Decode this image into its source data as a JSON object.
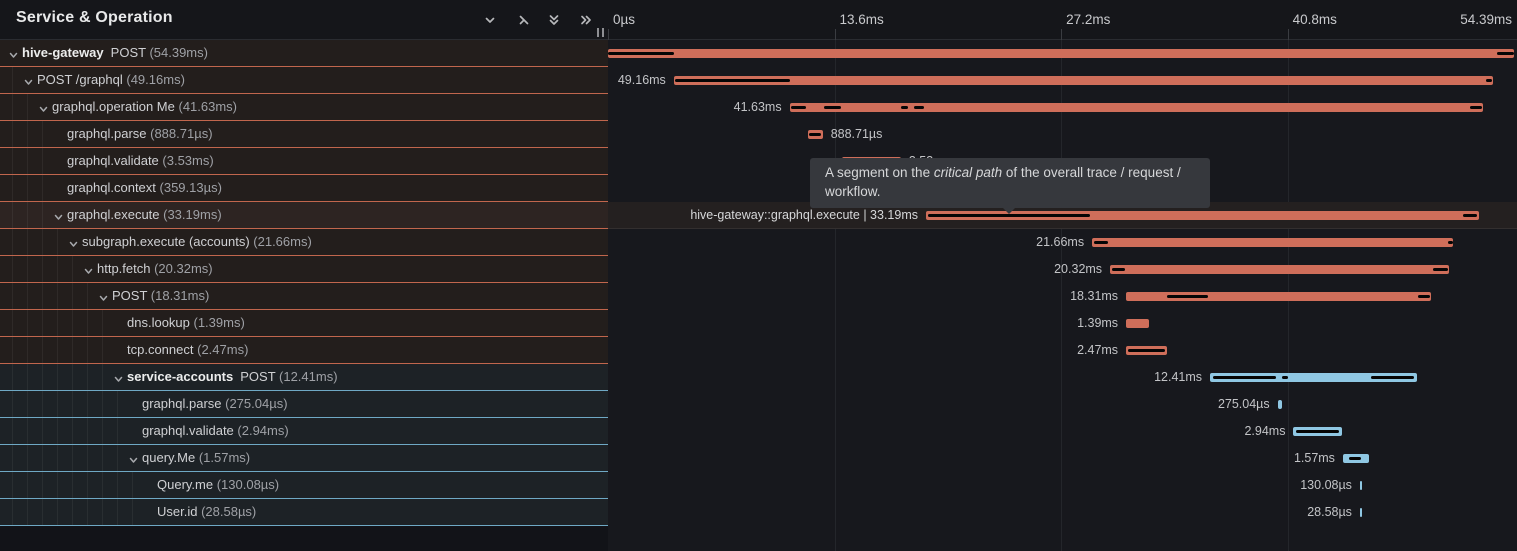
{
  "header": {
    "title": "Service & Operation",
    "icons": [
      {
        "name": "collapse-one-icon",
        "glyph": "chevron-down"
      },
      {
        "name": "expand-one-icon",
        "glyph": "chevron-right"
      },
      {
        "name": "collapse-all-icon",
        "glyph": "double-chevron-down"
      },
      {
        "name": "expand-all-icon",
        "glyph": "double-chevron-right"
      }
    ]
  },
  "ruler": {
    "total_ms": 54.39,
    "ticks": [
      {
        "label": "0µs",
        "ms": 0,
        "align": "left"
      },
      {
        "label": "13.6ms",
        "ms": 13.6,
        "align": "left"
      },
      {
        "label": "27.2ms",
        "ms": 27.2,
        "align": "left"
      },
      {
        "label": "40.8ms",
        "ms": 40.8,
        "align": "left"
      },
      {
        "label": "54.39ms",
        "ms": 54.39,
        "align": "right"
      }
    ]
  },
  "colors": {
    "orange": "#cf6e5a",
    "blue": "#8fc7e3",
    "critical_path": "#050505"
  },
  "tooltip": {
    "prefix": "A segment on the ",
    "italic": "critical path",
    "suffix": " of the overall trace / request / workflow.",
    "anchor_ms": 24.0
  },
  "spans": [
    {
      "service": "hive-gateway",
      "operation": "POST",
      "duration": "(54.39ms)",
      "depth": 0,
      "has_children": true,
      "color": "orange",
      "start_ms": 0,
      "duration_ms": 54.39,
      "bar_label": null,
      "label_side": null,
      "critical": [
        [
          0,
          3.95
        ],
        [
          53.35,
          54.39
        ]
      ],
      "hovered": false
    },
    {
      "service": null,
      "operation": "POST /graphql",
      "duration": "(49.16ms)",
      "depth": 1,
      "has_children": true,
      "color": "orange",
      "start_ms": 3.95,
      "duration_ms": 49.16,
      "bar_label": "49.16ms",
      "label_side": "left",
      "critical": [
        [
          4.05,
          10.9
        ],
        [
          52.7,
          53.05
        ]
      ],
      "hovered": false
    },
    {
      "service": null,
      "operation": "graphql.operation Me",
      "duration": "(41.63ms)",
      "depth": 2,
      "has_children": true,
      "color": "orange",
      "start_ms": 10.9,
      "duration_ms": 41.63,
      "bar_label": "41.63ms",
      "label_side": "left",
      "critical": [
        [
          11.0,
          11.9
        ],
        [
          12.95,
          14.0
        ],
        [
          17.6,
          18.0
        ],
        [
          18.35,
          19.0
        ],
        [
          51.75,
          52.45
        ]
      ],
      "hovered": false
    },
    {
      "service": null,
      "operation": "graphql.parse",
      "duration": "(888.71µs)",
      "depth": 3,
      "has_children": false,
      "color": "orange",
      "start_ms": 12.0,
      "duration_ms": 0.88871,
      "bar_label": "888.71µs",
      "label_side": "right",
      "critical": [
        [
          12.05,
          12.8
        ]
      ],
      "hovered": false
    },
    {
      "service": null,
      "operation": "graphql.validate",
      "duration": "(3.53ms)",
      "depth": 3,
      "has_children": false,
      "color": "orange",
      "start_ms": 14.05,
      "duration_ms": 3.53,
      "bar_label": "3.53ms",
      "label_side": "right",
      "critical": [
        [
          14.15,
          17.4
        ]
      ],
      "hovered": false
    },
    {
      "service": null,
      "operation": "graphql.context",
      "duration": "(359.13µs)",
      "depth": 3,
      "has_children": false,
      "color": "orange",
      "start_ms": 17.65,
      "duration_ms": 0.35913,
      "bar_label": "359.13µs",
      "label_side": "right",
      "critical": [],
      "hovered": false
    },
    {
      "service": null,
      "operation": "graphql.execute",
      "duration": "(33.19ms)",
      "depth": 3,
      "has_children": true,
      "color": "orange",
      "start_ms": 19.09,
      "duration_ms": 33.19,
      "bar_label": "hive-gateway::graphql.execute | 33.19ms",
      "label_side": "left",
      "critical": [
        [
          19.2,
          28.95
        ],
        [
          51.3,
          52.15
        ]
      ],
      "hovered": true
    },
    {
      "service": null,
      "operation": "subgraph.execute (accounts)",
      "duration": "(21.66ms)",
      "depth": 4,
      "has_children": true,
      "color": "orange",
      "start_ms": 29.06,
      "duration_ms": 21.66,
      "bar_label": "21.66ms",
      "label_side": "left",
      "critical": [
        [
          29.15,
          30.0
        ],
        [
          50.45,
          50.7
        ]
      ],
      "hovered": false
    },
    {
      "service": null,
      "operation": "http.fetch",
      "duration": "(20.32ms)",
      "depth": 5,
      "has_children": true,
      "color": "orange",
      "start_ms": 30.14,
      "duration_ms": 20.32,
      "bar_label": "20.32ms",
      "label_side": "left",
      "critical": [
        [
          30.25,
          31.05
        ],
        [
          49.55,
          50.4
        ]
      ],
      "hovered": false
    },
    {
      "service": null,
      "operation": "POST",
      "duration": "(18.31ms)",
      "depth": 6,
      "has_children": true,
      "color": "orange",
      "start_ms": 31.1,
      "duration_ms": 18.31,
      "bar_label": "18.31ms",
      "label_side": "left",
      "critical": [
        [
          33.55,
          36.0
        ],
        [
          48.6,
          49.35
        ]
      ],
      "hovered": false
    },
    {
      "service": null,
      "operation": "dns.lookup",
      "duration": "(1.39ms)",
      "depth": 7,
      "has_children": false,
      "color": "orange",
      "start_ms": 31.1,
      "duration_ms": 1.39,
      "bar_label": "1.39ms",
      "label_side": "left",
      "critical": [],
      "hovered": false
    },
    {
      "service": null,
      "operation": "tcp.connect",
      "duration": "(2.47ms)",
      "depth": 7,
      "has_children": false,
      "color": "orange",
      "start_ms": 31.1,
      "duration_ms": 2.47,
      "bar_label": "2.47ms",
      "label_side": "left",
      "critical": [
        [
          31.2,
          33.45
        ]
      ],
      "hovered": false
    },
    {
      "service": "service-accounts",
      "operation": "POST",
      "duration": "(12.41ms)",
      "depth": 7,
      "has_children": true,
      "color": "blue",
      "start_ms": 36.14,
      "duration_ms": 12.41,
      "bar_label": "12.41ms",
      "label_side": "left",
      "critical": [
        [
          36.35,
          40.1
        ],
        [
          40.45,
          40.85
        ],
        [
          45.8,
          48.4
        ]
      ],
      "hovered": false
    },
    {
      "service": null,
      "operation": "graphql.parse",
      "duration": "(275.04µs)",
      "depth": 8,
      "has_children": false,
      "color": "blue",
      "start_ms": 40.2,
      "duration_ms": 0.27504,
      "bar_label": "275.04µs",
      "label_side": "left",
      "critical": [],
      "hovered": false
    },
    {
      "service": null,
      "operation": "graphql.validate",
      "duration": "(2.94ms)",
      "depth": 8,
      "has_children": false,
      "color": "blue",
      "start_ms": 41.15,
      "duration_ms": 2.94,
      "bar_label": "2.94ms",
      "label_side": "left",
      "critical": [
        [
          41.3,
          43.9
        ]
      ],
      "hovered": false
    },
    {
      "service": null,
      "operation": "query.Me",
      "duration": "(1.57ms)",
      "depth": 8,
      "has_children": true,
      "color": "blue",
      "start_ms": 44.12,
      "duration_ms": 1.57,
      "bar_label": "1.57ms",
      "label_side": "left",
      "critical": [
        [
          44.5,
          45.2
        ]
      ],
      "hovered": false
    },
    {
      "service": null,
      "operation": "Query.me",
      "duration": "(130.08µs)",
      "depth": 9,
      "has_children": false,
      "color": "blue",
      "start_ms": 45.14,
      "duration_ms": 0.13008,
      "bar_label": "130.08µs",
      "label_side": "left",
      "critical": [],
      "hovered": false
    },
    {
      "service": null,
      "operation": "User.id",
      "duration": "(28.58µs)",
      "depth": 9,
      "has_children": false,
      "color": "blue",
      "start_ms": 45.14,
      "duration_ms": 0.02858,
      "bar_label": "28.58µs",
      "label_side": "left",
      "critical": [],
      "hovered": false
    }
  ]
}
